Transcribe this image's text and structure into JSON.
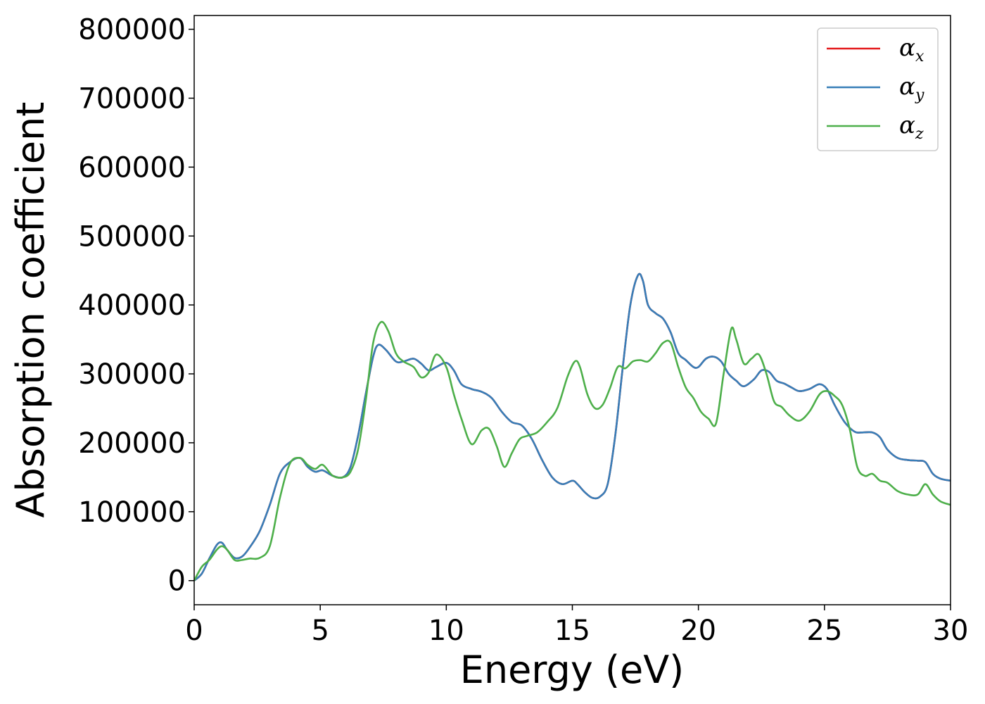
{
  "chart_data": {
    "type": "line",
    "title": "",
    "xlabel": "Energy (eV)",
    "ylabel": "Absorption coefficient",
    "xlim": [
      0,
      30
    ],
    "ylim": [
      -35000,
      820000
    ],
    "xticks": [
      0,
      5,
      10,
      15,
      20,
      25,
      30
    ],
    "yticks": [
      0,
      100000,
      200000,
      300000,
      400000,
      500000,
      600000,
      700000,
      800000
    ],
    "xtick_labels": [
      "0",
      "5",
      "10",
      "15",
      "20",
      "25",
      "30"
    ],
    "ytick_labels": [
      "0",
      "100000",
      "200000",
      "300000",
      "400000",
      "500000",
      "600000",
      "700000",
      "800000"
    ],
    "grid": false,
    "legend_position": "top-right",
    "series": [
      {
        "name": "α_x",
        "legend_base": "α",
        "legend_sub": "x",
        "color": "#e41a1c",
        "x": [
          0,
          0.3,
          0.6,
          0.9,
          1.1,
          1.3,
          1.6,
          1.9,
          2.2,
          2.6,
          3.0,
          3.4,
          3.8,
          4.2,
          4.5,
          4.8,
          5.1,
          5.5,
          5.9,
          6.2,
          6.5,
          6.8,
          7.1,
          7.3,
          7.6,
          8.0,
          8.3,
          8.7,
          9.0,
          9.3,
          9.6,
          10.0,
          10.3,
          10.6,
          11.0,
          11.4,
          11.8,
          12.2,
          12.6,
          13.0,
          13.4,
          13.8,
          14.2,
          14.6,
          15.0,
          15.2,
          15.5,
          15.8,
          16.1,
          16.4,
          16.7,
          17.0,
          17.3,
          17.6,
          17.8,
          18.0,
          18.3,
          18.6,
          18.9,
          19.2,
          19.5,
          19.8,
          20.0,
          20.3,
          20.6,
          20.9,
          21.2,
          21.5,
          21.8,
          22.2,
          22.5,
          22.8,
          23.1,
          23.4,
          23.7,
          24.0,
          24.4,
          24.8,
          25.1,
          25.4,
          25.8,
          26.2,
          26.5,
          26.9,
          27.2,
          27.5,
          27.9,
          28.3,
          28.7,
          29.0,
          29.3,
          29.6,
          30.0
        ],
        "y": [
          0,
          10000,
          32000,
          52000,
          55000,
          45000,
          33000,
          35000,
          48000,
          72000,
          110000,
          155000,
          172000,
          178000,
          165000,
          158000,
          160000,
          152000,
          150000,
          165000,
          210000,
          270000,
          325000,
          342000,
          335000,
          318000,
          318000,
          322000,
          315000,
          305000,
          310000,
          316000,
          305000,
          285000,
          278000,
          274000,
          265000,
          245000,
          230000,
          225000,
          205000,
          175000,
          150000,
          140000,
          145000,
          140000,
          128000,
          120000,
          122000,
          140000,
          210000,
          310000,
          400000,
          443000,
          435000,
          400000,
          388000,
          380000,
          360000,
          330000,
          320000,
          310000,
          310000,
          322000,
          325000,
          318000,
          300000,
          290000,
          282000,
          292000,
          305000,
          303000,
          290000,
          286000,
          280000,
          275000,
          278000,
          285000,
          278000,
          255000,
          230000,
          216000,
          215000,
          215000,
          208000,
          190000,
          178000,
          175000,
          174000,
          172000,
          155000,
          148000,
          145000
        ]
      },
      {
        "name": "α_y",
        "legend_base": "α",
        "legend_sub": "y",
        "color": "#377eb8",
        "x": [
          0,
          0.3,
          0.6,
          0.9,
          1.1,
          1.3,
          1.6,
          1.9,
          2.2,
          2.6,
          3.0,
          3.4,
          3.8,
          4.2,
          4.5,
          4.8,
          5.1,
          5.5,
          5.9,
          6.2,
          6.5,
          6.8,
          7.1,
          7.3,
          7.6,
          8.0,
          8.3,
          8.7,
          9.0,
          9.3,
          9.6,
          10.0,
          10.3,
          10.6,
          11.0,
          11.4,
          11.8,
          12.2,
          12.6,
          13.0,
          13.4,
          13.8,
          14.2,
          14.6,
          15.0,
          15.2,
          15.5,
          15.8,
          16.1,
          16.4,
          16.7,
          17.0,
          17.3,
          17.6,
          17.8,
          18.0,
          18.3,
          18.6,
          18.9,
          19.2,
          19.5,
          19.8,
          20.0,
          20.3,
          20.6,
          20.9,
          21.2,
          21.5,
          21.8,
          22.2,
          22.5,
          22.8,
          23.1,
          23.4,
          23.7,
          24.0,
          24.4,
          24.8,
          25.1,
          25.4,
          25.8,
          26.2,
          26.5,
          26.9,
          27.2,
          27.5,
          27.9,
          28.3,
          28.7,
          29.0,
          29.3,
          29.6,
          30.0
        ],
        "y": [
          0,
          10000,
          32000,
          52000,
          55000,
          45000,
          33000,
          35000,
          48000,
          72000,
          110000,
          155000,
          172000,
          178000,
          165000,
          158000,
          160000,
          152000,
          150000,
          165000,
          210000,
          270000,
          325000,
          342000,
          335000,
          318000,
          318000,
          322000,
          315000,
          305000,
          310000,
          316000,
          305000,
          285000,
          278000,
          274000,
          265000,
          245000,
          230000,
          225000,
          205000,
          175000,
          150000,
          140000,
          145000,
          140000,
          128000,
          120000,
          122000,
          140000,
          210000,
          310000,
          400000,
          443000,
          435000,
          400000,
          388000,
          380000,
          360000,
          330000,
          320000,
          310000,
          310000,
          322000,
          325000,
          318000,
          300000,
          290000,
          282000,
          292000,
          305000,
          303000,
          290000,
          286000,
          280000,
          275000,
          278000,
          285000,
          278000,
          255000,
          230000,
          216000,
          215000,
          215000,
          208000,
          190000,
          178000,
          175000,
          174000,
          172000,
          155000,
          148000,
          145000
        ]
      },
      {
        "name": "α_z",
        "legend_base": "α",
        "legend_sub": "z",
        "color": "#4daf4a",
        "x": [
          0,
          0.3,
          0.6,
          0.9,
          1.1,
          1.3,
          1.6,
          1.9,
          2.2,
          2.6,
          3.0,
          3.4,
          3.8,
          4.2,
          4.5,
          4.8,
          5.1,
          5.5,
          5.9,
          6.2,
          6.5,
          6.8,
          7.1,
          7.4,
          7.7,
          8.0,
          8.3,
          8.7,
          9.0,
          9.3,
          9.6,
          10.0,
          10.3,
          10.6,
          11.0,
          11.4,
          11.7,
          12.0,
          12.3,
          12.6,
          12.9,
          13.2,
          13.6,
          14.0,
          14.4,
          14.8,
          15.1,
          15.3,
          15.6,
          15.9,
          16.2,
          16.5,
          16.8,
          17.1,
          17.4,
          17.7,
          18.0,
          18.3,
          18.6,
          18.9,
          19.2,
          19.5,
          19.8,
          20.1,
          20.4,
          20.7,
          21.0,
          21.3,
          21.5,
          21.8,
          22.1,
          22.4,
          22.7,
          23.0,
          23.3,
          23.6,
          24.0,
          24.4,
          24.8,
          25.1,
          25.4,
          25.7,
          26.0,
          26.3,
          26.6,
          26.9,
          27.2,
          27.5,
          27.9,
          28.3,
          28.7,
          29.0,
          29.3,
          29.6,
          30.0
        ],
        "y": [
          0,
          20000,
          30000,
          45000,
          50000,
          45000,
          30000,
          30000,
          32000,
          33000,
          50000,
          120000,
          170000,
          178000,
          168000,
          162000,
          168000,
          152000,
          150000,
          158000,
          190000,
          260000,
          345000,
          375000,
          362000,
          330000,
          318000,
          310000,
          295000,
          302000,
          328000,
          310000,
          270000,
          235000,
          198000,
          218000,
          220000,
          195000,
          165000,
          185000,
          205000,
          210000,
          215000,
          230000,
          250000,
          295000,
          318000,
          310000,
          270000,
          250000,
          255000,
          280000,
          310000,
          308000,
          318000,
          320000,
          318000,
          330000,
          345000,
          345000,
          310000,
          280000,
          265000,
          245000,
          235000,
          228000,
          300000,
          365000,
          350000,
          315000,
          322000,
          328000,
          300000,
          260000,
          252000,
          240000,
          232000,
          245000,
          270000,
          275000,
          268000,
          255000,
          220000,
          165000,
          152000,
          155000,
          145000,
          142000,
          130000,
          125000,
          125000,
          140000,
          125000,
          115000,
          110000
        ]
      }
    ]
  }
}
